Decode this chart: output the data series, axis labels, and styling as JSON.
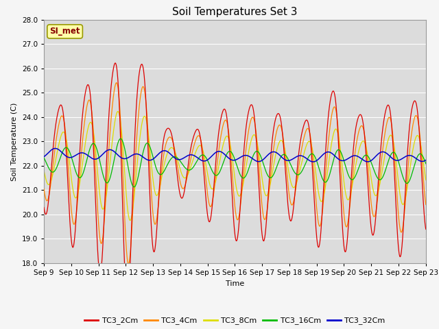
{
  "title": "Soil Temperatures Set 3",
  "xlabel": "Time",
  "ylabel": "Soil Temperature (C)",
  "ylim": [
    18.0,
    28.0
  ],
  "yticks": [
    18.0,
    19.0,
    20.0,
    21.0,
    22.0,
    23.0,
    24.0,
    25.0,
    26.0,
    27.0,
    28.0
  ],
  "xtick_labels": [
    "Sep 9",
    "Sep 10",
    "Sep 11",
    "Sep 12",
    "Sep 13",
    "Sep 14",
    "Sep 15",
    "Sep 16",
    "Sep 17",
    "Sep 18",
    "Sep 19",
    "Sep 20",
    "Sep 21",
    "Sep 22",
    "Sep 23"
  ],
  "series_colors": {
    "TC3_2Cm": "#dd0000",
    "TC3_4Cm": "#ff8800",
    "TC3_8Cm": "#dddd00",
    "TC3_16Cm": "#00bb00",
    "TC3_32Cm": "#0000cc"
  },
  "legend_label": "SI_met",
  "background_color": "#dcdcdc",
  "figure_color": "#f5f5f5",
  "grid_color": "#ffffff",
  "title_fontsize": 11,
  "axis_fontsize": 8,
  "tick_fontsize": 7.5
}
